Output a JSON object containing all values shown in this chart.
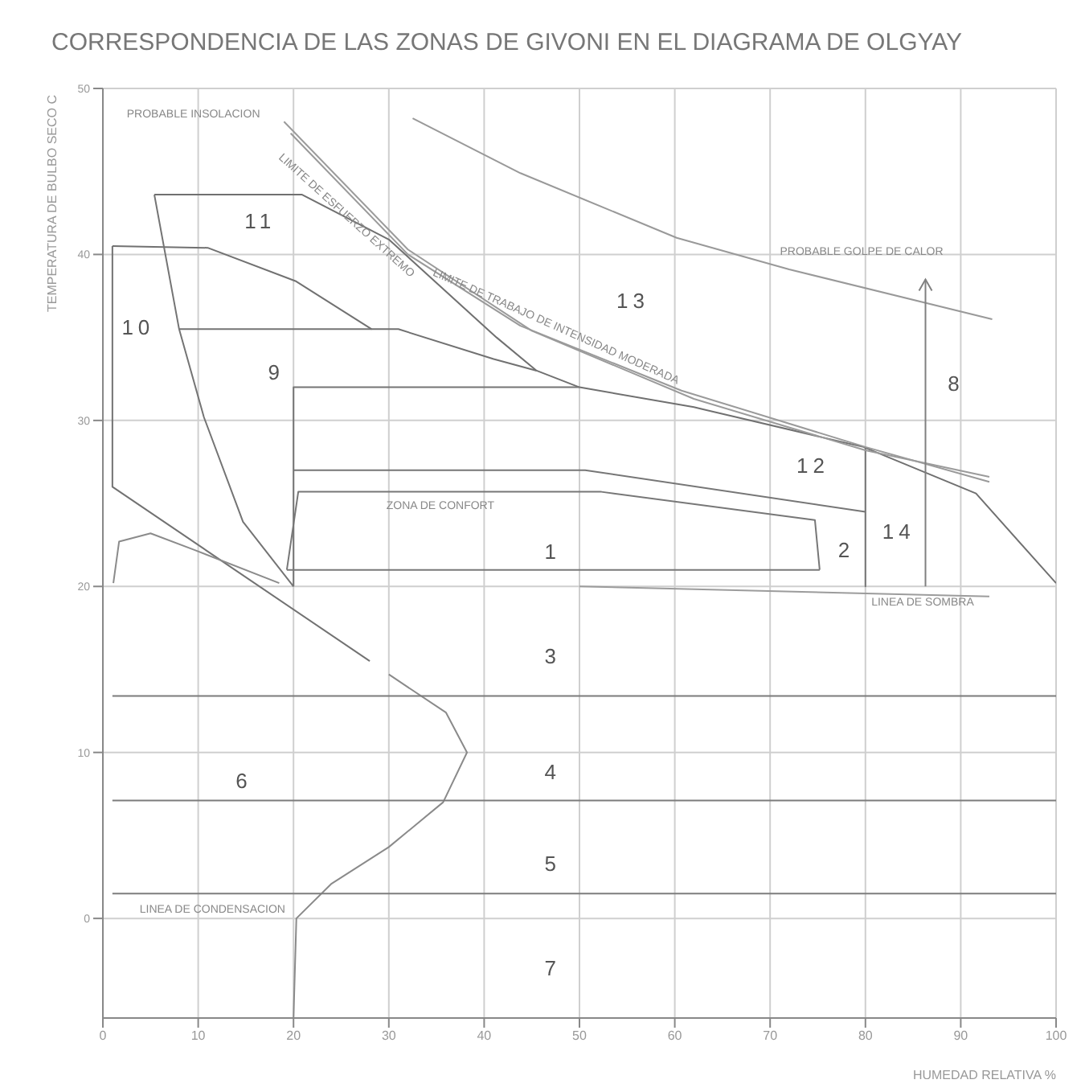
{
  "chart_data": {
    "type": "line",
    "title": "CORRESPONDENCIA DE LAS ZONAS DE GIVONI EN EL DIAGRAMA DE OLGYAY",
    "xlabel": "HUMEDAD RELATIVA %",
    "ylabel": "TEMPERATURA DE BULBO SECO  C",
    "xlim": [
      0,
      100
    ],
    "xticks": [
      0,
      10,
      20,
      30,
      40,
      50,
      60,
      70,
      80,
      90,
      100
    ],
    "ylim": [
      -6,
      50
    ],
    "yticks": [
      0,
      10,
      20,
      30,
      40,
      50
    ],
    "grid": true,
    "marker": "none",
    "line_style": "solid",
    "series": [
      {
        "color": "#707070",
        "x": [
          5.4,
          20.9,
          30,
          41.3,
          45.5,
          50,
          62,
          79.8,
          91.6,
          100
        ],
        "values": [
          43.6,
          43.6,
          40.9,
          35,
          33,
          32,
          30.8,
          28.4,
          25.6,
          20.2
        ]
      },
      {
        "color": "#717171",
        "x": [
          1,
          11,
          20.2,
          28.2,
          31,
          41,
          45.5
        ],
        "values": [
          40.5,
          40.4,
          38.4,
          35.5,
          35.5,
          33.7,
          33
        ]
      },
      {
        "color": "#727272",
        "x": [
          1,
          1,
          28
        ],
        "values": [
          40.5,
          26,
          15.5
        ]
      },
      {
        "color": "#737373",
        "x": [
          8,
          28.2
        ],
        "values": [
          35.5,
          35.5
        ]
      },
      {
        "color": "#747474",
        "x": [
          5.4,
          8,
          10.6,
          14.7,
          20
        ],
        "values": [
          43.6,
          35.5,
          30.2,
          23.9,
          20
        ]
      },
      {
        "color": "#757575",
        "x": [
          20,
          20,
          50
        ],
        "values": [
          20,
          32,
          32
        ]
      },
      {
        "color": "#767676",
        "x": [
          20,
          50.6,
          80,
          80,
          80
        ],
        "values": [
          27,
          27,
          24.5,
          20,
          28.4
        ]
      },
      {
        "color": "#777777",
        "x": [
          19.3,
          20.5,
          52.3,
          74.7,
          75.2
        ],
        "values": [
          21,
          25.7,
          25.7,
          24,
          21
        ]
      },
      {
        "color": "#787878",
        "x": [
          19.3,
          75.2
        ],
        "values": [
          21,
          21
        ]
      },
      {
        "color": "#999999",
        "x": [
          32.5,
          43.8,
          60.2,
          72,
          93.3
        ],
        "values": [
          48.2,
          44.9,
          41,
          39.1,
          36.1
        ]
      },
      {
        "color": "#9a9a9a",
        "x": [
          19.7,
          32,
          43.8,
          60.7,
          80,
          93
        ],
        "values": [
          47.3,
          40,
          35.7,
          31.8,
          28.4,
          26.3
        ]
      },
      {
        "color": "#9b9b9b",
        "x": [
          19,
          32,
          45,
          62,
          80,
          93
        ],
        "values": [
          48,
          40.3,
          35.4,
          31.3,
          28.2,
          26.6
        ]
      },
      {
        "color": "#8a8a8a",
        "x": [
          20,
          20.3,
          24,
          30,
          35.7,
          38.2,
          36,
          30
        ],
        "values": [
          -6,
          0,
          2.1,
          4.3,
          7,
          10,
          12.4,
          14.7
        ]
      },
      {
        "color": "#8b8b8b",
        "x": [
          1.1,
          1.7,
          5,
          9.6,
          18.5
        ],
        "values": [
          20.2,
          22.7,
          23.2,
          22.2,
          20.2
        ]
      },
      {
        "color": "#7b7b7b",
        "x": [
          1,
          100
        ],
        "values": [
          13.4,
          13.4
        ]
      },
      {
        "color": "#7c7c7c",
        "x": [
          1,
          100
        ],
        "values": [
          7.1,
          7.1
        ]
      },
      {
        "color": "#7d7d7d",
        "x": [
          1,
          100
        ],
        "values": [
          1.5,
          1.5
        ]
      },
      {
        "color": "#9c9c9c",
        "x": [
          50,
          93
        ],
        "values": [
          20,
          19.4
        ]
      }
    ],
    "annotations": [
      "1",
      "2",
      "3",
      "4",
      "5",
      "6",
      "7",
      "8",
      "9",
      "10",
      "11",
      "12",
      "13",
      "14",
      "ZONA DE CONFORT",
      "PROBABLE INSOLACION",
      "PROBABLE GOLPE DE CALOR",
      "LIMITE DE ESFUERZO EXTREMO",
      "LIMITE DE TRABAJO DE INTENSIDAD MODERADA",
      "LINEA DE CONDENSACION",
      "LINEA DE SOMBRA"
    ]
  }
}
